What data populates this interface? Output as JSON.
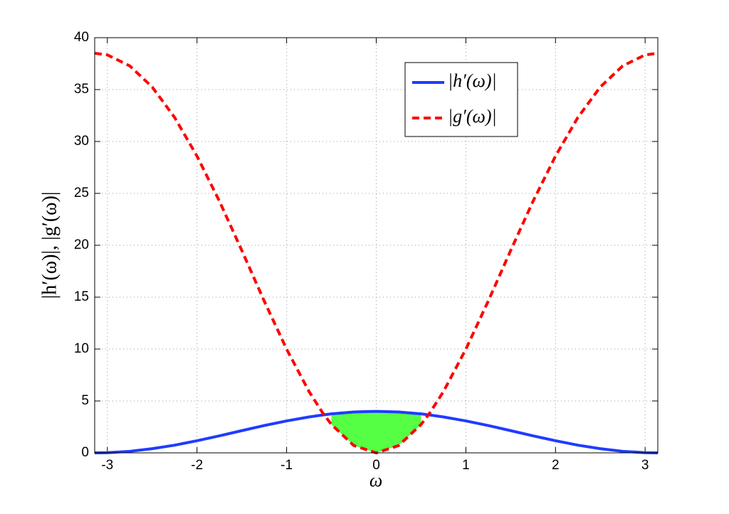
{
  "chart_data": {
    "type": "line",
    "xlabel": "ω",
    "ylabel": "|h′(ω)|, |g′(ω)|",
    "x": [
      -3.1416,
      -3,
      -2.75,
      -2.5,
      -2.25,
      -2,
      -1.75,
      -1.5,
      -1.25,
      -1,
      -0.75,
      -0.6,
      -0.5,
      -0.25,
      0,
      0.25,
      0.5,
      0.6,
      0.75,
      1,
      1.25,
      1.5,
      1.75,
      2,
      2.25,
      2.5,
      2.75,
      3,
      3.1416
    ],
    "series": [
      {
        "name": "|h′(ω)|",
        "color": "#1f3cff",
        "dash": false,
        "values": [
          0,
          0.02,
          0.15,
          0.4,
          0.74,
          1.17,
          1.64,
          2.14,
          2.63,
          3.08,
          3.46,
          3.65,
          3.76,
          3.94,
          4,
          3.94,
          3.76,
          3.65,
          3.46,
          3.08,
          2.63,
          2.14,
          1.64,
          1.17,
          0.74,
          0.4,
          0.15,
          0.02,
          0
        ]
      },
      {
        "name": "|g′(ω)|",
        "color": "#ff0000",
        "dash": true,
        "values": [
          38.5,
          38.34,
          37.28,
          35.25,
          32.32,
          28.59,
          24.25,
          19.5,
          14.63,
          9.99,
          5.91,
          3.88,
          2.73,
          0.7,
          0,
          0.7,
          2.73,
          3.88,
          5.91,
          9.99,
          14.63,
          19.5,
          24.25,
          28.59,
          32.32,
          35.25,
          37.28,
          38.34,
          38.5
        ]
      }
    ],
    "fill_between_color": "#55ff44",
    "xlim": [
      -3.1416,
      3.1416
    ],
    "xticks": [
      -3,
      -2,
      -1,
      0,
      1,
      2,
      3
    ],
    "ylim": [
      0,
      40
    ],
    "yticks": [
      0,
      5,
      10,
      15,
      20,
      25,
      30,
      35,
      40
    ],
    "grid": true,
    "legend": "upper-center"
  }
}
